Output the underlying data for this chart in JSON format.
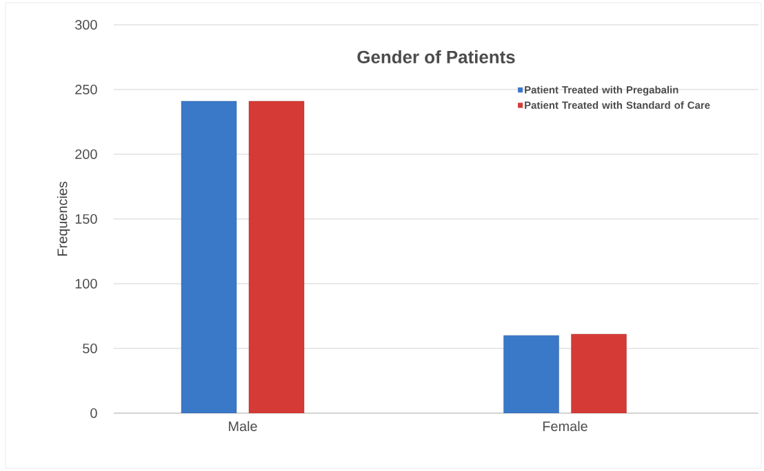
{
  "chart_data": {
    "type": "bar",
    "title": "Gender of Patients",
    "ylabel": "Frequencies",
    "categories": [
      "Male",
      "Female"
    ],
    "series": [
      {
        "name": "Patient Treated with Pregabalin",
        "color": "#3a78c8",
        "values": [
          241,
          60
        ]
      },
      {
        "name": "Patient Treated with Standard of Care",
        "color": "#d63a36",
        "values": [
          241,
          61
        ]
      }
    ],
    "ylim": [
      0,
      300
    ],
    "yticks": [
      0,
      50,
      100,
      150,
      200,
      250,
      300
    ],
    "grid": "y",
    "legend": "right"
  }
}
